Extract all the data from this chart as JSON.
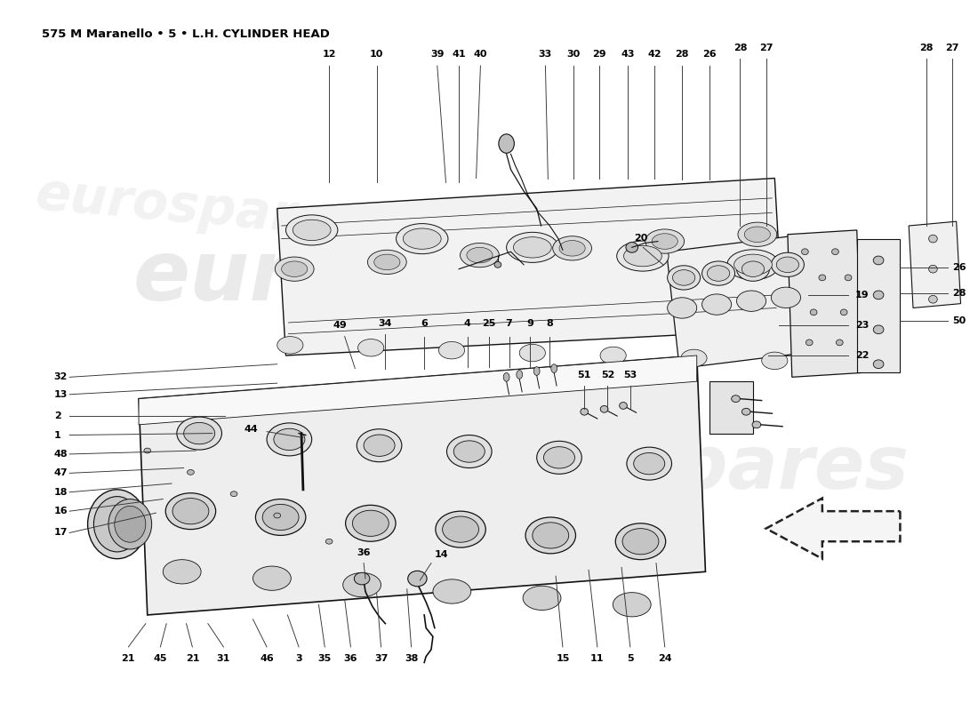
{
  "title": "575 M Maranello • 5 • L.H. CYLINDER HEAD",
  "bg_color": "#ffffff",
  "lc": "#111111",
  "thin": 0.6,
  "med": 0.9,
  "thick": 1.4,
  "label_fs": 8.0,
  "title_fs": 9.5,
  "watermark": "eurospares"
}
